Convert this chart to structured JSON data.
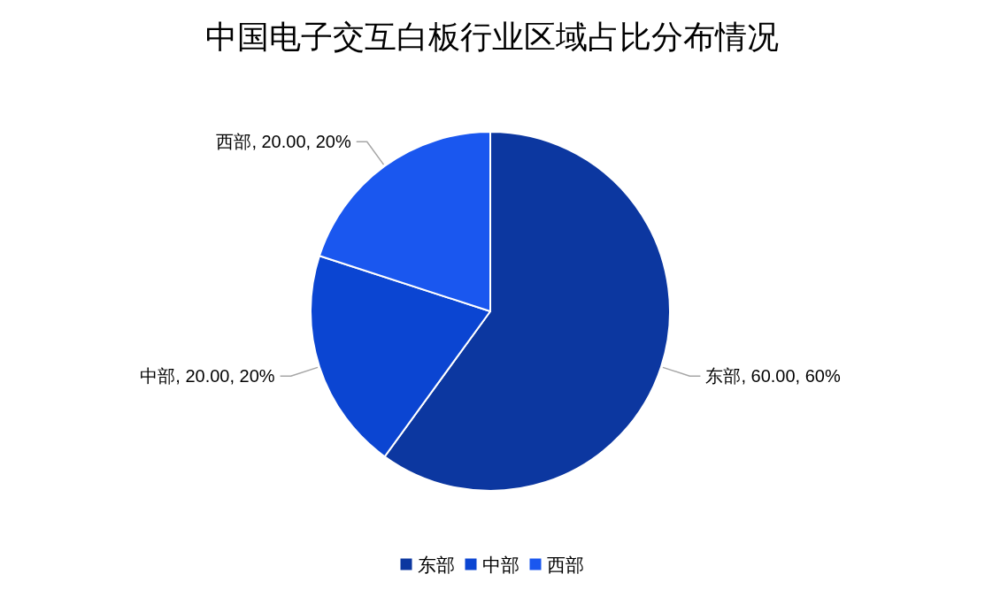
{
  "chart_data": {
    "type": "pie",
    "title": "中国电子交互白板行业区域占比分布情况",
    "categories": [
      "东部",
      "中部",
      "西部"
    ],
    "values": [
      60,
      20,
      20
    ],
    "colors": [
      "#0c37a0",
      "#0b45d2",
      "#1a57ef"
    ],
    "value_labels": [
      "东部, 60.00, 60%",
      "中部, 20.00, 20%",
      "西部, 20.00, 20%"
    ],
    "legend": "bottom"
  }
}
